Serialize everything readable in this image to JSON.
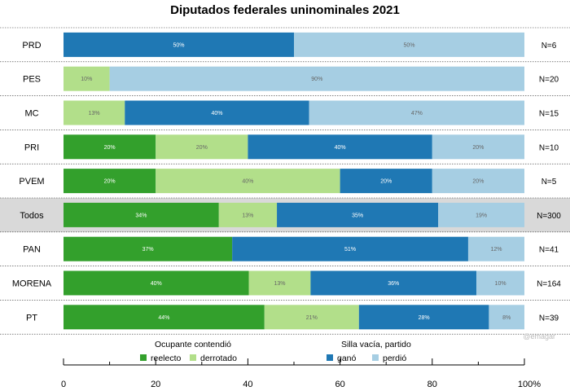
{
  "chart_data": {
    "type": "bar",
    "orientation": "horizontal",
    "stacked": true,
    "title": "Diputados federales uninominales 2021",
    "categories": [
      "PRD",
      "PES",
      "MC",
      "PRI",
      "PVEM",
      "Todos",
      "PAN",
      "MORENA",
      "PT"
    ],
    "highlighted_category": "Todos",
    "n_labels": [
      "N=6",
      "N=20",
      "N=15",
      "N=10",
      "N=5",
      "N=300",
      "N=41",
      "N=164",
      "N=39"
    ],
    "series": [
      {
        "name": "reelecto",
        "color": "#33a02c",
        "values": [
          0,
          0,
          0,
          20,
          20,
          33.7,
          36.6,
          40.2,
          43.6
        ],
        "labels": [
          "",
          "",
          "",
          "20%",
          "20%",
          "34%",
          "37%",
          "40%",
          "44%"
        ]
      },
      {
        "name": "derrotado",
        "color": "#b2df8a",
        "values": [
          0,
          10,
          13.3,
          20,
          40,
          12.6,
          0,
          13.4,
          20.5
        ],
        "labels": [
          "",
          "10%",
          "13%",
          "20%",
          "40%",
          "13%",
          "",
          "13%",
          "21%"
        ]
      },
      {
        "name": "ganó",
        "color": "#1f78b4",
        "values": [
          50,
          0,
          40,
          40,
          20,
          35.0,
          51.2,
          36.0,
          28.2
        ],
        "labels": [
          "50%",
          "",
          "40%",
          "40%",
          "20%",
          "35%",
          "51%",
          "36%",
          "28%"
        ]
      },
      {
        "name": "perdió",
        "color": "#a6cee3",
        "values": [
          50,
          90,
          46.7,
          20,
          20,
          18.7,
          12.2,
          10.4,
          7.7
        ],
        "labels": [
          "50%",
          "90%",
          "47%",
          "20%",
          "20%",
          "19%",
          "12%",
          "10%",
          "8%"
        ]
      }
    ],
    "xlim": [
      0,
      100
    ],
    "xticks": [
      "0",
      "20",
      "40",
      "60",
      "80",
      "100%"
    ],
    "xtick_values": [
      0,
      20,
      40,
      60,
      80,
      100
    ],
    "legend": {
      "placement": "bottom",
      "groups": [
        {
          "title": "Ocupante contendió",
          "items": [
            "reelecto",
            "derrotado"
          ]
        },
        {
          "title": "Silla vacía, partido",
          "items": [
            "ganó",
            "perdió"
          ]
        }
      ]
    },
    "credit": "@emagar"
  }
}
